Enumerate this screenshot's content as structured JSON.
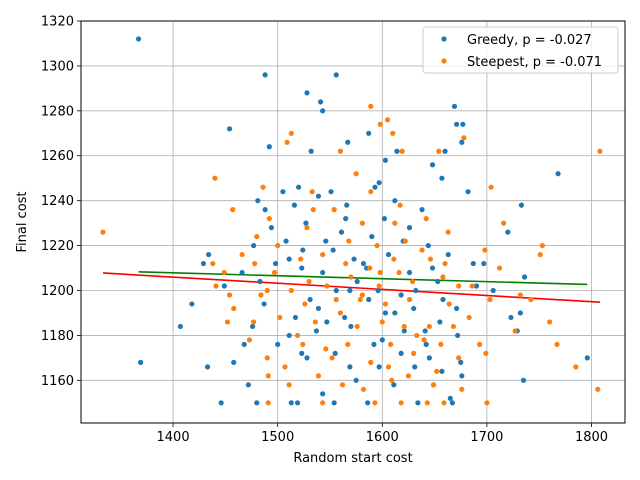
{
  "chart_data": {
    "type": "scatter",
    "title": "",
    "xlabel": "Random start cost",
    "ylabel": "Final cost",
    "xlim": [
      1312,
      1832
    ],
    "ylim": [
      1141,
      1320
    ],
    "xticks": [
      1400,
      1500,
      1600,
      1700,
      1800
    ],
    "yticks": [
      1160,
      1180,
      1200,
      1220,
      1240,
      1260,
      1280,
      1300,
      1320
    ],
    "grid": true,
    "legend_position": "top-right",
    "series": [
      {
        "name": "Greedy, p = -0.027",
        "color": "#1f77b4",
        "points": [
          [
            1367,
            1312
          ],
          [
            1488,
            1296
          ],
          [
            1556,
            1296
          ],
          [
            1528,
            1288
          ],
          [
            1541,
            1284
          ],
          [
            1543,
            1280
          ],
          [
            1669,
            1282
          ],
          [
            1454,
            1272
          ],
          [
            1671,
            1274
          ],
          [
            1677,
            1274
          ],
          [
            1676,
            1266
          ],
          [
            1587,
            1270
          ],
          [
            1492,
            1264
          ],
          [
            1532,
            1262
          ],
          [
            1614,
            1262
          ],
          [
            1660,
            1262
          ],
          [
            1648,
            1256
          ],
          [
            1567,
            1266
          ],
          [
            1551,
            1244
          ],
          [
            1603,
            1258
          ],
          [
            1768,
            1252
          ],
          [
            1657,
            1250
          ],
          [
            1597,
            1248
          ],
          [
            1520,
            1246
          ],
          [
            1481,
            1240
          ],
          [
            1488,
            1236
          ],
          [
            1505,
            1244
          ],
          [
            1539,
            1242
          ],
          [
            1566,
            1238
          ],
          [
            1612,
            1240
          ],
          [
            1682,
            1244
          ],
          [
            1733,
            1238
          ],
          [
            1494,
            1228
          ],
          [
            1527,
            1230
          ],
          [
            1546,
            1222
          ],
          [
            1565,
            1232
          ],
          [
            1602,
            1232
          ],
          [
            1638,
            1236
          ],
          [
            1720,
            1226
          ],
          [
            1477,
            1220
          ],
          [
            1511,
            1214
          ],
          [
            1553,
            1218
          ],
          [
            1573,
            1214
          ],
          [
            1620,
            1222
          ],
          [
            1644,
            1220
          ],
          [
            1687,
            1212
          ],
          [
            1736,
            1206
          ],
          [
            1434,
            1216
          ],
          [
            1429,
            1212
          ],
          [
            1466,
            1208
          ],
          [
            1483,
            1204
          ],
          [
            1523,
            1210
          ],
          [
            1556,
            1200
          ],
          [
            1582,
            1212
          ],
          [
            1632,
            1200
          ],
          [
            1653,
            1204
          ],
          [
            1697,
            1212
          ],
          [
            1706,
            1200
          ],
          [
            1418,
            1194
          ],
          [
            1449,
            1202
          ],
          [
            1487,
            1194
          ],
          [
            1517,
            1188
          ],
          [
            1547,
            1186
          ],
          [
            1587,
            1196
          ],
          [
            1612,
            1190
          ],
          [
            1658,
            1196
          ],
          [
            1671,
            1192
          ],
          [
            1723,
            1188
          ],
          [
            1407,
            1184
          ],
          [
            1476,
            1184
          ],
          [
            1511,
            1180
          ],
          [
            1537,
            1182
          ],
          [
            1570,
            1184
          ],
          [
            1600,
            1178
          ],
          [
            1641,
            1182
          ],
          [
            1672,
            1180
          ],
          [
            1729,
            1182
          ],
          [
            1468,
            1176
          ],
          [
            1500,
            1176
          ],
          [
            1528,
            1170
          ],
          [
            1555,
            1172
          ],
          [
            1592,
            1176
          ],
          [
            1618,
            1172
          ],
          [
            1645,
            1170
          ],
          [
            1675,
            1168
          ],
          [
            1369,
            1168
          ],
          [
            1458,
            1168
          ],
          [
            1523,
            1172
          ],
          [
            1569,
            1166
          ],
          [
            1597,
            1166
          ],
          [
            1631,
            1166
          ],
          [
            1657,
            1164
          ],
          [
            1676,
            1162
          ],
          [
            1433,
            1166
          ],
          [
            1472,
            1158
          ],
          [
            1513,
            1150
          ],
          [
            1543,
            1154
          ],
          [
            1575,
            1160
          ],
          [
            1611,
            1158
          ],
          [
            1649,
            1158
          ],
          [
            1665,
            1152
          ],
          [
            1446,
            1150
          ],
          [
            1480,
            1150
          ],
          [
            1519,
            1150
          ],
          [
            1554,
            1150
          ],
          [
            1586,
            1150
          ],
          [
            1634,
            1150
          ],
          [
            1667,
            1150
          ],
          [
            1735,
            1160
          ],
          [
            1796,
            1170
          ],
          [
            1732,
            1190
          ],
          [
            1690,
            1202
          ],
          [
            1508,
            1222
          ],
          [
            1524,
            1218
          ],
          [
            1561,
            1226
          ],
          [
            1590,
            1224
          ],
          [
            1606,
            1216
          ],
          [
            1626,
            1208
          ],
          [
            1663,
            1216
          ],
          [
            1531,
            1196
          ],
          [
            1576,
            1204
          ],
          [
            1596,
            1200
          ],
          [
            1618,
            1198
          ],
          [
            1648,
            1210
          ],
          [
            1539,
            1192
          ],
          [
            1564,
            1188
          ],
          [
            1630,
            1192
          ],
          [
            1655,
            1186
          ],
          [
            1516,
            1238
          ],
          [
            1593,
            1246
          ],
          [
            1626,
            1228
          ],
          [
            1498,
            1212
          ],
          [
            1543,
            1208
          ],
          [
            1569,
            1200
          ],
          [
            1585,
            1210
          ],
          [
            1603,
            1190
          ],
          [
            1621,
            1182
          ],
          [
            1642,
            1176
          ]
        ]
      },
      {
        "name": "Steepest, p = -0.071",
        "color": "#ff7f0e",
        "points": [
          [
            1333,
            1226
          ],
          [
            1808,
            1262
          ],
          [
            1440,
            1250
          ],
          [
            1457,
            1236
          ],
          [
            1486,
            1246
          ],
          [
            1509,
            1266
          ],
          [
            1513,
            1270
          ],
          [
            1533,
            1244
          ],
          [
            1560,
            1262
          ],
          [
            1575,
            1252
          ],
          [
            1589,
            1282
          ],
          [
            1598,
            1274
          ],
          [
            1605,
            1276
          ],
          [
            1610,
            1270
          ],
          [
            1619,
            1262
          ],
          [
            1654,
            1262
          ],
          [
            1678,
            1268
          ],
          [
            1704,
            1246
          ],
          [
            1438,
            1212
          ],
          [
            1449,
            1208
          ],
          [
            1454,
            1198
          ],
          [
            1480,
            1224
          ],
          [
            1492,
            1232
          ],
          [
            1500,
            1220
          ],
          [
            1528,
            1228
          ],
          [
            1554,
            1236
          ],
          [
            1581,
            1230
          ],
          [
            1589,
            1244
          ],
          [
            1617,
            1238
          ],
          [
            1642,
            1232
          ],
          [
            1663,
            1226
          ],
          [
            1698,
            1218
          ],
          [
            1716,
            1230
          ],
          [
            1751,
            1216
          ],
          [
            1753,
            1220
          ],
          [
            1441,
            1202
          ],
          [
            1458,
            1192
          ],
          [
            1477,
            1186
          ],
          [
            1490,
            1200
          ],
          [
            1513,
            1200
          ],
          [
            1526,
            1194
          ],
          [
            1547,
            1202
          ],
          [
            1560,
            1190
          ],
          [
            1579,
            1196
          ],
          [
            1603,
            1194
          ],
          [
            1626,
            1196
          ],
          [
            1645,
            1184
          ],
          [
            1664,
            1194
          ],
          [
            1683,
            1188
          ],
          [
            1703,
            1196
          ],
          [
            1742,
            1196
          ],
          [
            1760,
            1186
          ],
          [
            1452,
            1186
          ],
          [
            1473,
            1178
          ],
          [
            1490,
            1170
          ],
          [
            1507,
            1166
          ],
          [
            1524,
            1176
          ],
          [
            1546,
            1174
          ],
          [
            1567,
            1176
          ],
          [
            1589,
            1168
          ],
          [
            1606,
            1166
          ],
          [
            1630,
            1172
          ],
          [
            1652,
            1164
          ],
          [
            1673,
            1170
          ],
          [
            1699,
            1172
          ],
          [
            1727,
            1182
          ],
          [
            1767,
            1176
          ],
          [
            1491,
            1162
          ],
          [
            1511,
            1158
          ],
          [
            1539,
            1162
          ],
          [
            1562,
            1158
          ],
          [
            1582,
            1156
          ],
          [
            1609,
            1160
          ],
          [
            1625,
            1162
          ],
          [
            1649,
            1158
          ],
          [
            1676,
            1156
          ],
          [
            1700,
            1150
          ],
          [
            1785,
            1166
          ],
          [
            1806,
            1156
          ],
          [
            1491,
            1150
          ],
          [
            1543,
            1150
          ],
          [
            1593,
            1150
          ],
          [
            1618,
            1150
          ],
          [
            1643,
            1150
          ],
          [
            1659,
            1150
          ],
          [
            1519,
            1180
          ],
          [
            1536,
            1186
          ],
          [
            1552,
            1170
          ],
          [
            1570,
            1206
          ],
          [
            1588,
            1210
          ],
          [
            1611,
            1214
          ],
          [
            1629,
            1204
          ],
          [
            1658,
            1206
          ],
          [
            1686,
            1202
          ],
          [
            1712,
            1210
          ],
          [
            1732,
            1198
          ],
          [
            1497,
            1208
          ],
          [
            1522,
            1214
          ],
          [
            1543,
            1216
          ],
          [
            1565,
            1212
          ],
          [
            1597,
            1202
          ],
          [
            1616,
            1208
          ],
          [
            1638,
            1218
          ],
          [
            1660,
            1212
          ],
          [
            1502,
            1188
          ],
          [
            1530,
            1204
          ],
          [
            1556,
            1196
          ],
          [
            1576,
            1184
          ],
          [
            1600,
            1186
          ],
          [
            1621,
            1184
          ],
          [
            1640,
            1178
          ],
          [
            1668,
            1184
          ],
          [
            1693,
            1176
          ],
          [
            1484,
            1198
          ],
          [
            1568,
            1222
          ],
          [
            1595,
            1220
          ],
          [
            1622,
            1222
          ],
          [
            1646,
            1214
          ],
          [
            1673,
            1202
          ],
          [
            1581,
            1198
          ],
          [
            1608,
            1176
          ],
          [
            1633,
            1180
          ],
          [
            1656,
            1176
          ],
          [
            1466,
            1216
          ],
          [
            1478,
            1212
          ],
          [
            1534,
            1236
          ],
          [
            1612,
            1230
          ],
          [
            1598,
            1208
          ]
        ]
      }
    ],
    "trendlines": [
      {
        "series": "Greedy, p = -0.027",
        "color": "#008000",
        "x": [
          1367,
          1796
        ],
        "y": [
          1208.3,
          1202.7
        ]
      },
      {
        "series": "Steepest, p = -0.071",
        "color": "#ff0000",
        "x": [
          1333,
          1808
        ],
        "y": [
          1207.8,
          1194.8
        ]
      }
    ]
  }
}
